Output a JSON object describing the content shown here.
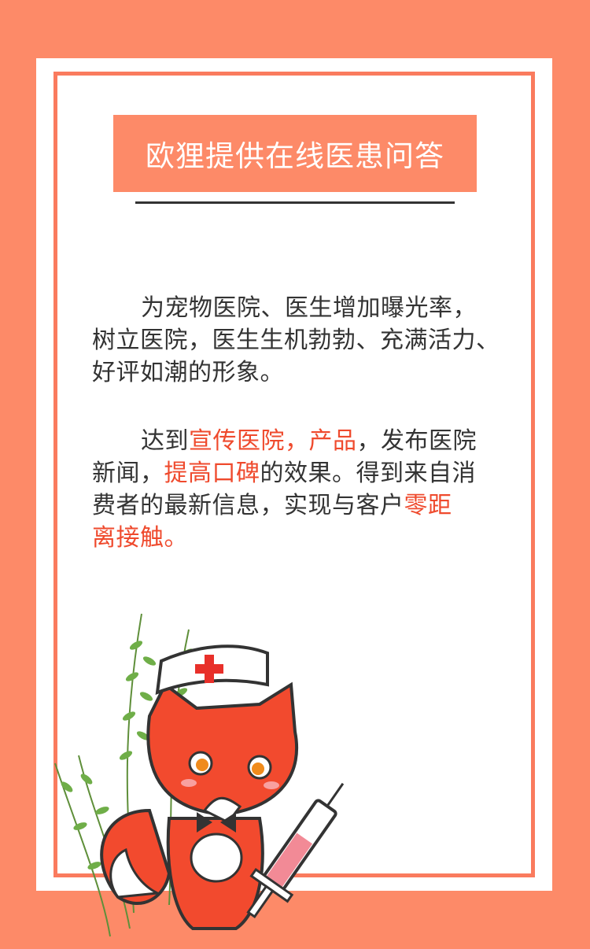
{
  "title": "欧狸提供在线医患问答",
  "paragraph1": {
    "line1": "为宠物医院、医生增加曝光率，",
    "line2": "树立医院，医生生机勃勃、充满活力、",
    "line3": "好评如潮的形象。"
  },
  "paragraph2": {
    "l1_a": "达到",
    "l1_b": "宣传医院，产品",
    "l1_c": "，发布医院",
    "l2_a": "新闻，",
    "l2_b": "提高口碑",
    "l2_c": "的效果。得到来自消",
    "l3_a": "费者的最新信息，实现与客户",
    "l3_b": "零距",
    "l4_a": "离接触。"
  },
  "colors": {
    "background": "#fd8a68",
    "frame": "#fa7b5e",
    "highlight": "#ef4a2d",
    "text": "#333333"
  },
  "icons": {
    "mascot": "fox-nurse-illustration",
    "plants": "leafy-branch-icon",
    "hat_cross": "red-cross-icon",
    "syringe": "syringe-icon"
  }
}
